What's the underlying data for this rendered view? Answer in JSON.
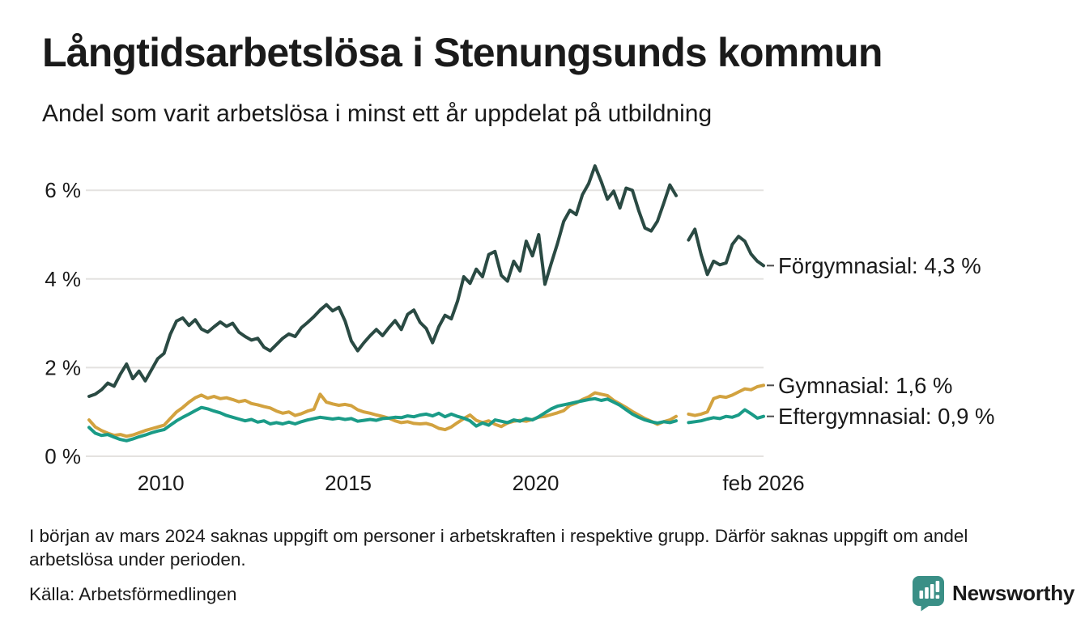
{
  "header": {
    "title": "Långtidsarbetslösa i Stenungsunds kommun",
    "subtitle": "Andel som varit arbetslösa i minst ett år uppdelat på utbildning"
  },
  "footer": {
    "note": "I början av mars 2024 saknas uppgift om personer i arbetskraften i respektive grupp. Därför saknas uppgift om andel arbetslösa under perioden.",
    "source": "Källa: Arbetsförmedlingen",
    "brand": "Newsworthy"
  },
  "theme": {
    "text_color": "#1a1a1a",
    "grid_color": "#e4e2e0",
    "leader_color": "#4d4d4d",
    "background": "#ffffff",
    "brand_color": "#3a8f86"
  },
  "chart_data": {
    "type": "line",
    "title": "Långtidsarbetslösa i Stenungsunds kommun",
    "subtitle": "Andel som varit arbetslösa i minst ett år uppdelat på utbildning",
    "x_unit": "time, monthly observations Feb 2008 – Feb 2026 (sampled every 2 months; null = data gap around turn of 2023/2024)",
    "x_range_years": [
      2008.083,
      2026.083
    ],
    "ylim": [
      0,
      6.8
    ],
    "grid": true,
    "legend_position": "end-of-line labels at right",
    "x_ticks": [
      {
        "year": 2010,
        "label": "2010"
      },
      {
        "year": 2015,
        "label": "2015"
      },
      {
        "year": 2020,
        "label": "2020"
      },
      {
        "year": 2026.083,
        "label": "feb 2026"
      }
    ],
    "y_ticks": [
      {
        "value": 0,
        "label": "0 %"
      },
      {
        "value": 2,
        "label": "2 %"
      },
      {
        "value": 4,
        "label": "4 %"
      },
      {
        "value": 6,
        "label": "6 %"
      }
    ],
    "series": [
      {
        "id": "forgymnasial",
        "name": "Förgymnasial",
        "end_label": "Förgymnasial: 4,3 %",
        "last_value_label": "4,3 %",
        "color": "#2a4a43",
        "values": [
          1.35,
          1.4,
          1.5,
          1.65,
          1.58,
          1.85,
          2.08,
          1.75,
          1.92,
          1.7,
          1.95,
          2.2,
          2.32,
          2.75,
          3.05,
          3.12,
          2.95,
          3.08,
          2.87,
          2.8,
          2.92,
          3.03,
          2.93,
          3.0,
          2.8,
          2.7,
          2.62,
          2.66,
          2.46,
          2.38,
          2.52,
          2.66,
          2.76,
          2.7,
          2.9,
          3.02,
          3.15,
          3.3,
          3.42,
          3.28,
          3.36,
          3.05,
          2.6,
          2.38,
          2.56,
          2.72,
          2.86,
          2.72,
          2.9,
          3.06,
          2.86,
          3.2,
          3.3,
          3.02,
          2.88,
          2.56,
          2.92,
          3.18,
          3.1,
          3.5,
          4.05,
          3.9,
          4.22,
          4.05,
          4.55,
          4.62,
          4.08,
          3.95,
          4.4,
          4.18,
          4.85,
          4.52,
          5.0,
          3.88,
          4.35,
          4.8,
          5.3,
          5.55,
          5.45,
          5.9,
          6.15,
          6.55,
          6.2,
          5.8,
          5.98,
          5.6,
          6.05,
          6.0,
          5.55,
          5.15,
          5.08,
          5.3,
          5.7,
          6.12,
          5.88,
          null,
          4.88,
          5.12,
          4.55,
          4.1,
          4.4,
          4.32,
          4.36,
          4.78,
          4.96,
          4.85,
          4.56,
          4.4,
          4.3
        ]
      },
      {
        "id": "gymnasial",
        "name": "Gymnasial",
        "end_label": "Gymnasial: 1,6 %",
        "last_value_label": "1,6 %",
        "color": "#d2a23f",
        "values": [
          0.82,
          0.66,
          0.58,
          0.52,
          0.47,
          0.49,
          0.45,
          0.48,
          0.53,
          0.58,
          0.62,
          0.66,
          0.7,
          0.85,
          1.0,
          1.1,
          1.22,
          1.32,
          1.38,
          1.31,
          1.35,
          1.3,
          1.32,
          1.28,
          1.23,
          1.26,
          1.19,
          1.16,
          1.12,
          1.09,
          1.02,
          0.97,
          1.0,
          0.92,
          0.96,
          1.02,
          1.06,
          1.4,
          1.22,
          1.18,
          1.15,
          1.17,
          1.14,
          1.05,
          1.0,
          0.97,
          0.93,
          0.9,
          0.86,
          0.8,
          0.76,
          0.78,
          0.74,
          0.73,
          0.74,
          0.7,
          0.63,
          0.6,
          0.66,
          0.76,
          0.85,
          0.93,
          0.81,
          0.76,
          0.8,
          0.72,
          0.67,
          0.75,
          0.79,
          0.81,
          0.79,
          0.83,
          0.88,
          0.9,
          0.94,
          0.98,
          1.03,
          1.15,
          1.2,
          1.28,
          1.34,
          1.43,
          1.4,
          1.37,
          1.26,
          1.18,
          1.1,
          1.01,
          0.93,
          0.85,
          0.79,
          0.72,
          0.78,
          0.82,
          0.9,
          null,
          0.95,
          0.92,
          0.95,
          1.0,
          1.3,
          1.35,
          1.33,
          1.38,
          1.45,
          1.52,
          1.5,
          1.57,
          1.6
        ]
      },
      {
        "id": "eftergymnasial",
        "name": "Eftergymnasial",
        "end_label": "Eftergymnasial: 0,9 %",
        "last_value_label": "0,9 %",
        "color": "#1a9b87",
        "values": [
          0.65,
          0.52,
          0.47,
          0.49,
          0.43,
          0.38,
          0.35,
          0.39,
          0.44,
          0.48,
          0.53,
          0.57,
          0.6,
          0.7,
          0.8,
          0.88,
          0.95,
          1.03,
          1.1,
          1.07,
          1.02,
          0.98,
          0.92,
          0.88,
          0.84,
          0.8,
          0.83,
          0.77,
          0.8,
          0.73,
          0.76,
          0.73,
          0.77,
          0.73,
          0.78,
          0.82,
          0.85,
          0.88,
          0.86,
          0.84,
          0.86,
          0.83,
          0.85,
          0.79,
          0.81,
          0.83,
          0.81,
          0.85,
          0.86,
          0.88,
          0.87,
          0.91,
          0.89,
          0.93,
          0.95,
          0.91,
          0.97,
          0.89,
          0.95,
          0.9,
          0.86,
          0.8,
          0.68,
          0.75,
          0.7,
          0.82,
          0.79,
          0.76,
          0.82,
          0.79,
          0.85,
          0.82,
          0.89,
          0.98,
          1.07,
          1.13,
          1.16,
          1.19,
          1.22,
          1.25,
          1.28,
          1.3,
          1.26,
          1.29,
          1.22,
          1.15,
          1.05,
          0.95,
          0.88,
          0.82,
          0.78,
          0.75,
          0.78,
          0.76,
          0.8,
          null,
          0.76,
          0.78,
          0.8,
          0.84,
          0.87,
          0.85,
          0.9,
          0.88,
          0.93,
          1.05,
          0.96,
          0.86,
          0.9
        ]
      }
    ]
  }
}
